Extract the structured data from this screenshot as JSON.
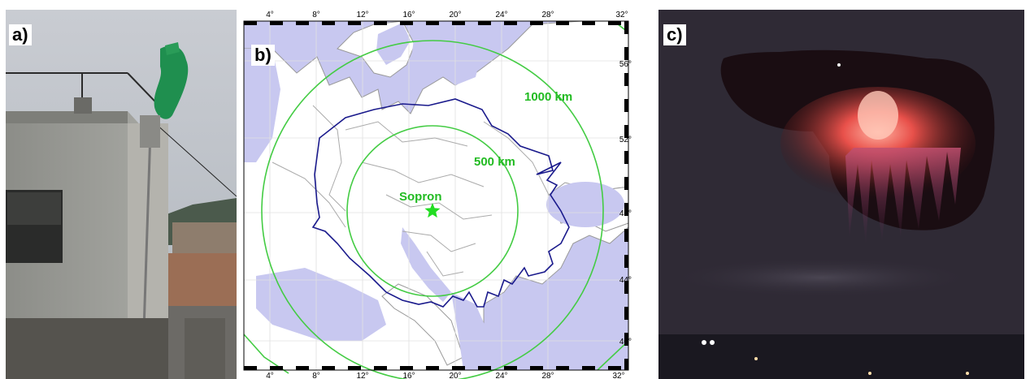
{
  "panels": {
    "a": {
      "label": "a)"
    },
    "b": {
      "label": "b)"
    },
    "c": {
      "label": "c)"
    }
  },
  "map": {
    "lon_ticks": [
      "4°",
      "8°",
      "12°",
      "16°",
      "20°",
      "24°",
      "28°",
      "32°"
    ],
    "lat_ticks": [
      "56°",
      "52°",
      "48°",
      "44°",
      "40°"
    ],
    "station": {
      "name": "Sopron",
      "lon": 16.6,
      "lat": 47.7
    },
    "rings": [
      {
        "label": "500 km",
        "radius_km": 500
      },
      {
        "label": "1000 km",
        "radius_km": 1000
      }
    ],
    "colors": {
      "sea": "#c8c8f0",
      "land": "#ffffff",
      "borders": "#aaaaaa",
      "coast": "#999999",
      "rings": "#44cc44",
      "coverage": "#1a1a8c",
      "station": "#22dd22"
    },
    "star_icon": "star-icon"
  },
  "colors": {
    "text_green": "#22bb22"
  }
}
